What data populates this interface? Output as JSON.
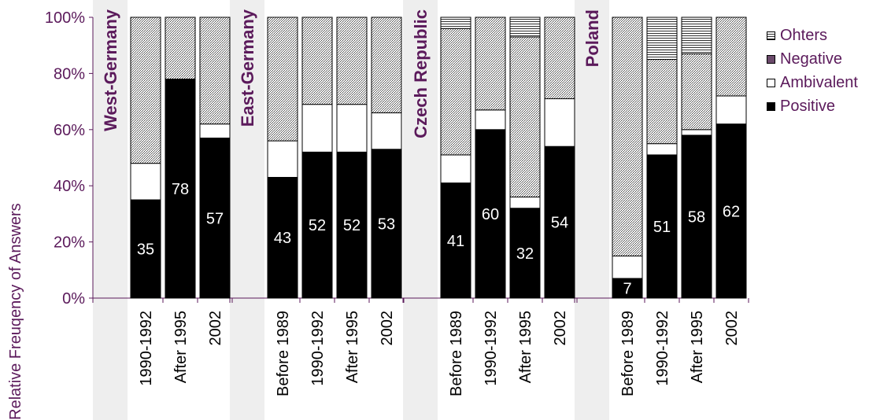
{
  "chart_data": {
    "type": "bar",
    "stacked": true,
    "ylabel": "Relative Freuqency of Answers",
    "yticks": [
      "0%",
      "20%",
      "40%",
      "60%",
      "80%",
      "100%"
    ],
    "ylim": [
      0,
      100
    ],
    "groups": [
      {
        "name": "West-Germany",
        "categories": [
          "1990-1992",
          "After 1995",
          "2002"
        ],
        "positive": [
          35,
          78,
          57
        ],
        "ambivalent": [
          13,
          0,
          5
        ],
        "negative": [
          52,
          22,
          38
        ],
        "others": [
          0,
          0,
          0
        ]
      },
      {
        "name": "East-Germany",
        "categories": [
          "Before 1989",
          "1990-1992",
          "After 1995",
          "2002"
        ],
        "positive": [
          43,
          52,
          52,
          53
        ],
        "ambivalent": [
          13,
          17,
          17,
          13
        ],
        "negative": [
          44,
          31,
          31,
          34
        ],
        "others": [
          0,
          0,
          0,
          0
        ]
      },
      {
        "name": "Czech Republic",
        "categories": [
          "Before 1989",
          "1990-1992",
          "After 1995",
          "2002"
        ],
        "positive": [
          41,
          60,
          32,
          54
        ],
        "ambivalent": [
          10,
          7,
          4,
          17
        ],
        "negative": [
          45,
          33,
          57,
          29
        ],
        "others": [
          4,
          0,
          7,
          0
        ]
      },
      {
        "name": "Poland",
        "categories": [
          "Before 1989",
          "1990-1992",
          "After 1995",
          "2002"
        ],
        "positive": [
          7,
          51,
          58,
          62
        ],
        "ambivalent": [
          8,
          4,
          2,
          10
        ],
        "negative": [
          85,
          30,
          27,
          28
        ],
        "others": [
          0,
          15,
          13,
          0
        ]
      }
    ],
    "legend": [
      "Ohters",
      "Negative",
      "Ambivalent",
      "Positive"
    ],
    "legend_position": "top-right"
  }
}
